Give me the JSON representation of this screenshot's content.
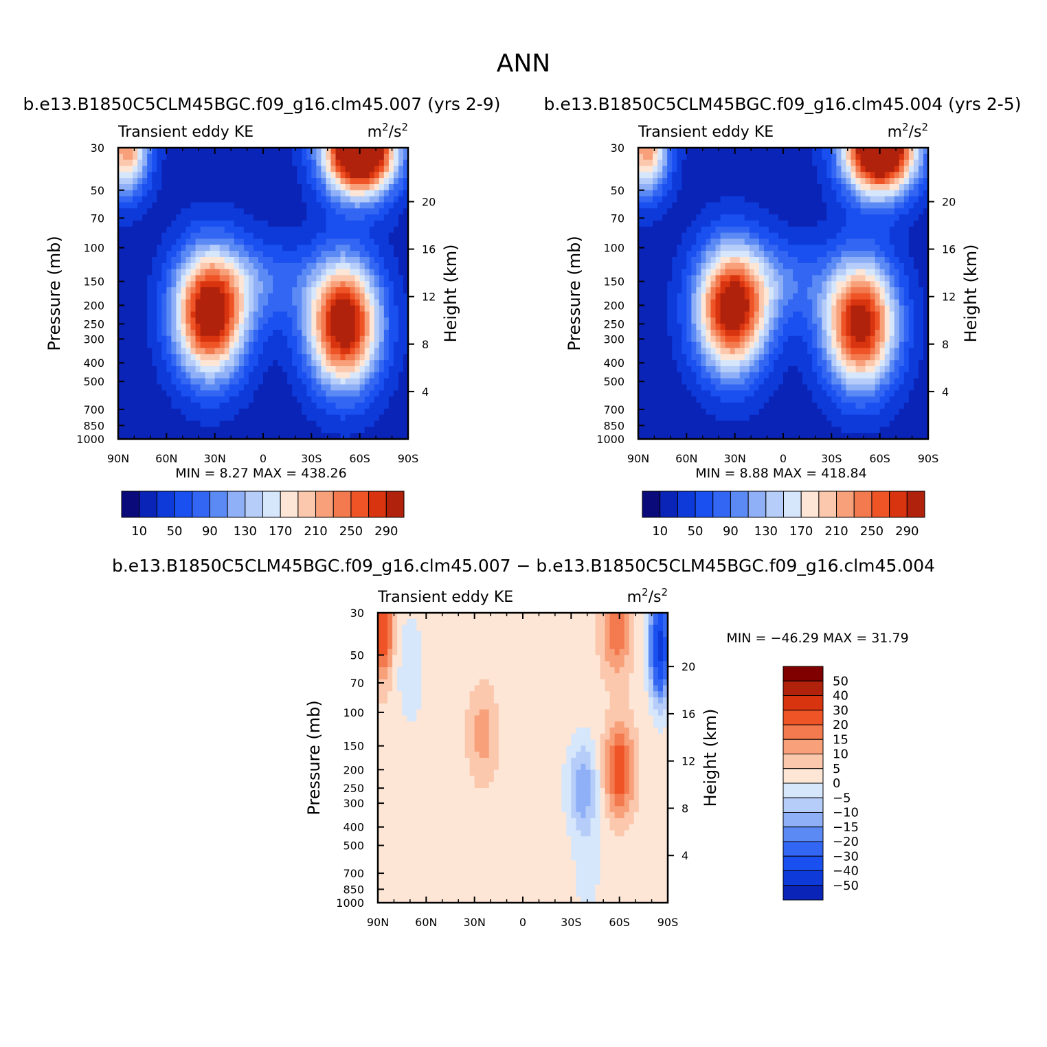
{
  "title": "ANN",
  "common": {
    "panel_left_label": "Transient eddy KE",
    "panel_right_label_base": "m",
    "panel_right_label_sup1": "2",
    "panel_right_label_mid": "/s",
    "panel_right_label_sup2": "2",
    "ylabel_left": "Pressure (mb)",
    "ylabel_right": "Height (km)",
    "x_ticks": [
      "90N",
      "60N",
      "30N",
      "0",
      "30S",
      "60S",
      "90S"
    ],
    "y_ticks": [
      "30",
      "50",
      "70",
      "100",
      "150",
      "200",
      "250",
      "300",
      "400",
      "500",
      "700",
      "850",
      "1000"
    ],
    "height_ticks": [
      "4",
      "8",
      "12",
      "16",
      "20"
    ],
    "colormap": [
      "#0a0a7a",
      "#0b24b8",
      "#0d3ad9",
      "#1a4ff0",
      "#3366f2",
      "#5b8af5",
      "#8fb0f7",
      "#b5cdf8",
      "#d6e6fb",
      "#fde6d6",
      "#fbc8ad",
      "#f7a07a",
      "#f37a4e",
      "#ef5427",
      "#d8340f",
      "#b0220c",
      "#800000"
    ]
  },
  "chart_data": [
    {
      "type": "heatmap",
      "subtitle": "b.e13.B1850C5CLM45BGC.f09_g16.clm45.007 (yrs 2-9)",
      "xlabel": "",
      "ylabel": "Pressure (mb)",
      "ylabel_right": "Height (km)",
      "x_range": [
        90,
        -90
      ],
      "y_range_mb": [
        1000,
        30
      ],
      "stats_text": "MIN =    8.27   MAX = 438.26",
      "min": 8.27,
      "max": 438.26,
      "colorbar_labels": [
        "10",
        "50",
        "90",
        "130",
        "170",
        "210",
        "250",
        "290"
      ],
      "levels": [
        10,
        30,
        50,
        70,
        90,
        110,
        130,
        150,
        170,
        190,
        210,
        230,
        250,
        270,
        290
      ],
      "features": [
        {
          "lat": 33,
          "p": 220,
          "value": 330
        },
        {
          "lat": -50,
          "p": 250,
          "value": 330
        },
        {
          "lat": -60,
          "p": 30,
          "value": 438
        },
        {
          "lat": 85,
          "p": 30,
          "value": 230
        }
      ]
    },
    {
      "type": "heatmap",
      "subtitle": "b.e13.B1850C5CLM45BGC.f09_g16.clm45.004 (yrs 2-5)",
      "xlabel": "",
      "ylabel": "Pressure (mb)",
      "ylabel_right": "Height (km)",
      "x_range": [
        90,
        -90
      ],
      "y_range_mb": [
        1000,
        30
      ],
      "stats_text": "MIN =    8.88   MAX = 418.84",
      "min": 8.88,
      "max": 418.84,
      "colorbar_labels": [
        "10",
        "50",
        "90",
        "130",
        "170",
        "210",
        "250",
        "290"
      ],
      "levels": [
        10,
        30,
        50,
        70,
        90,
        110,
        130,
        150,
        170,
        190,
        210,
        230,
        250,
        270,
        290
      ],
      "features": [
        {
          "lat": 32,
          "p": 210,
          "value": 320
        },
        {
          "lat": -48,
          "p": 250,
          "value": 315
        },
        {
          "lat": -60,
          "p": 30,
          "value": 418
        },
        {
          "lat": 85,
          "p": 30,
          "value": 225
        }
      ]
    },
    {
      "type": "heatmap",
      "subtitle": "b.e13.B1850C5CLM45BGC.f09_g16.clm45.007 − b.e13.B1850C5CLM45BGC.f09_g16.clm45.004",
      "xlabel": "",
      "ylabel": "Pressure (mb)",
      "ylabel_right": "Height (km)",
      "x_range": [
        90,
        -90
      ],
      "y_range_mb": [
        1000,
        30
      ],
      "stats_text": "MIN = −46.29   MAX =   31.79",
      "min": -46.29,
      "max": 31.79,
      "colorbar_labels": [
        "50",
        "40",
        "30",
        "20",
        "15",
        "10",
        "5",
        "0",
        "−5",
        "−10",
        "−15",
        "−20",
        "−30",
        "−40",
        "−50"
      ],
      "levels": [
        -50,
        -40,
        -30,
        -20,
        -15,
        -10,
        -5,
        0,
        5,
        10,
        15,
        20,
        30,
        40,
        50
      ],
      "features": [
        {
          "lat": -85,
          "p": 45,
          "value": -46
        },
        {
          "lat": -60,
          "p": 200,
          "value": 25
        },
        {
          "lat": -58,
          "p": 35,
          "value": 20
        },
        {
          "lat": 87,
          "p": 35,
          "value": 30
        },
        {
          "lat": -37,
          "p": 250,
          "value": -14
        },
        {
          "lat": 25,
          "p": 130,
          "value": 13
        }
      ]
    }
  ]
}
